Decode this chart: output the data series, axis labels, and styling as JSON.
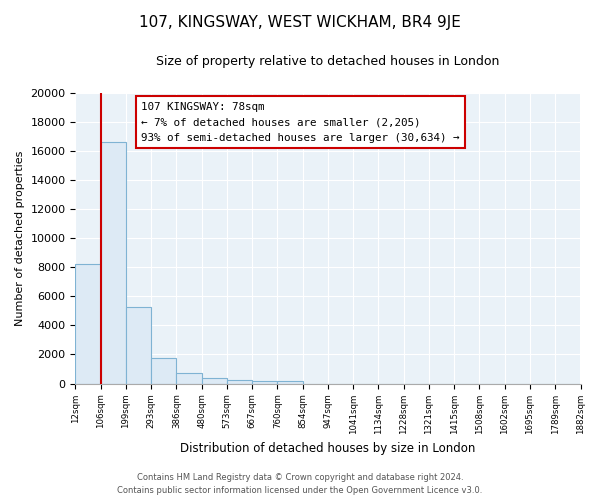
{
  "title": "107, KINGSWAY, WEST WICKHAM, BR4 9JE",
  "subtitle": "Size of property relative to detached houses in London",
  "bar_heights": [
    8200,
    16600,
    5300,
    1750,
    700,
    350,
    250,
    200,
    150,
    0,
    0,
    0,
    0,
    0,
    0,
    0,
    0,
    0,
    0,
    0
  ],
  "bar_fill_color": "#ddeaf5",
  "bar_edge_color": "#7fb3d3",
  "x_labels": [
    "12sqm",
    "106sqm",
    "199sqm",
    "293sqm",
    "386sqm",
    "480sqm",
    "573sqm",
    "667sqm",
    "760sqm",
    "854sqm",
    "947sqm",
    "1041sqm",
    "1134sqm",
    "1228sqm",
    "1321sqm",
    "1415sqm",
    "1508sqm",
    "1602sqm",
    "1695sqm",
    "1789sqm",
    "1882sqm"
  ],
  "ylabel": "Number of detached properties",
  "xlabel": "Distribution of detached houses by size in London",
  "ylim": [
    0,
    20000
  ],
  "yticks": [
    0,
    2000,
    4000,
    6000,
    8000,
    10000,
    12000,
    14000,
    16000,
    18000,
    20000
  ],
  "vline_x": 1,
  "vline_color": "#cc0000",
  "ann_line1": "107 KINGSWAY: 78sqm",
  "ann_line2": "← 7% of detached houses are smaller (2,205)",
  "ann_line3": "93% of semi-detached houses are larger (30,634) →",
  "footer_line1": "Contains HM Land Registry data © Crown copyright and database right 2024.",
  "footer_line2": "Contains public sector information licensed under the Open Government Licence v3.0.",
  "plot_bg_color": "#eaf2f8",
  "fig_bg_color": "#ffffff",
  "grid_color": "#ffffff",
  "num_bars": 20
}
